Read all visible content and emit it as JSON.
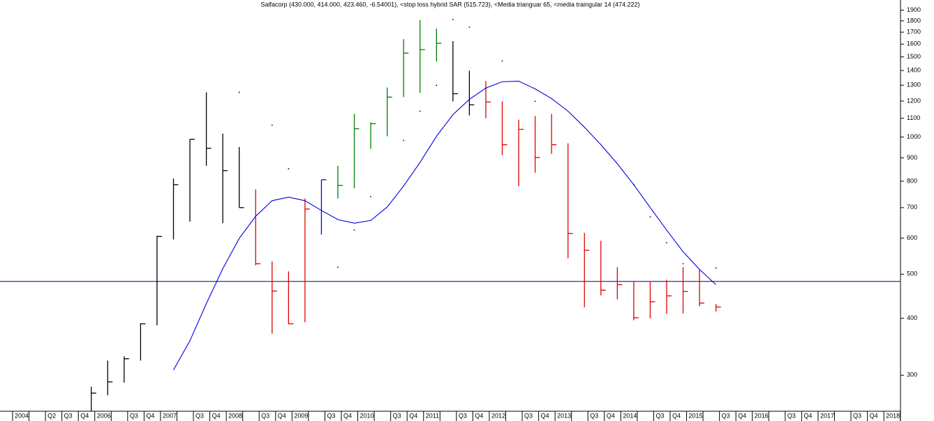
{
  "chart_data": {
    "type": "ohlc",
    "title": "Salfacorp (430.000, 414.000, 423.460, -6.54001), <stop loss hybrid SAR (515.723), <Media trianguar 65, <media traingular 14 (474.222)",
    "categories": [
      "2004",
      null,
      "Q2",
      "Q3",
      "Q4",
      "2006",
      null,
      "Q3",
      "Q4",
      "2007",
      null,
      "Q3",
      "Q4",
      "2008",
      null,
      "Q3",
      "Q4",
      "2009",
      null,
      "Q3",
      "Q4",
      "2010",
      null,
      "Q3",
      "Q4",
      "2011",
      null,
      "Q3",
      "Q4",
      "2012",
      null,
      "Q3",
      "Q4",
      "2013",
      null,
      "Q3",
      "Q4",
      "2014",
      null,
      "Q3",
      "Q4",
      "2015",
      null,
      "Q3",
      "Q4",
      "2016",
      null,
      "Q3",
      "Q4",
      "2017",
      null,
      "Q3",
      "Q4",
      "2018",
      null
    ],
    "high": [
      null,
      null,
      null,
      null,
      null,
      283,
      323,
      330,
      390,
      607,
      811,
      989,
      1254,
      1018,
      951,
      767,
      533,
      507,
      733,
      806,
      865,
      1124,
      1077,
      1285,
      1641,
      1806,
      1730,
      1624,
      1399,
      1327,
      1198,
      1092,
      1112,
      1124,
      969,
      616,
      592,
      518,
      482,
      482,
      486,
      518,
      511,
      430,
      null,
      null,
      null,
      null,
      null,
      null,
      null,
      null,
      null,
      null,
      null
    ],
    "low": [
      null,
      null,
      null,
      null,
      null,
      250,
      271,
      289,
      323,
      386,
      596,
      652,
      865,
      647,
      700,
      523,
      370,
      388,
      392,
      611,
      733,
      772,
      942,
      1004,
      1224,
      1250,
      1465,
      1198,
      1116,
      1100,
      912,
      780,
      835,
      919,
      542,
      423,
      449,
      440,
      396,
      400,
      409,
      410,
      425,
      414,
      null,
      null,
      null,
      null,
      null,
      null,
      null,
      null,
      null,
      null,
      null
    ],
    "close": [
      null,
      null,
      null,
      null,
      null,
      274,
      290,
      326,
      389,
      605,
      786,
      989,
      945,
      844,
      700,
      527,
      459,
      389,
      695,
      806,
      783,
      1043,
      1070,
      1224,
      1529,
      1556,
      1607,
      1245,
      1177,
      1194,
      962,
      1040,
      902,
      962,
      614,
      564,
      461,
      474,
      401,
      435,
      448,
      458,
      432,
      423.46,
      null,
      null,
      null,
      null,
      null,
      null,
      null,
      null,
      null,
      null,
      null
    ],
    "bar_colors": [
      null,
      null,
      null,
      null,
      null,
      "#000000",
      "#000000",
      "#000000",
      "#000000",
      "#000000",
      "#000000",
      "#000000",
      "#000000",
      "#000000",
      "#000000",
      "#e00000",
      "#e00000",
      "#e00000",
      "#e00000",
      "#0000e0",
      "#008000",
      "#008000",
      "#008000",
      "#008000",
      "#008000",
      "#008000",
      "#008000",
      "#000000",
      "#000000",
      "#e00000",
      "#e00000",
      "#e00000",
      "#e00000",
      "#e00000",
      "#e00000",
      "#e00000",
      "#e00000",
      "#e00000",
      "#e00000",
      "#e00000",
      "#e00000",
      "#e00000",
      "#e00000",
      "#e00000",
      null,
      null,
      null,
      null,
      null,
      null,
      null,
      null,
      null,
      null,
      null
    ],
    "overlays": [
      {
        "type": "line",
        "color": "#0000e0",
        "values": [
          null,
          null,
          null,
          null,
          null,
          null,
          null,
          null,
          null,
          null,
          308,
          357,
          431,
          514,
          599,
          670,
          725,
          738,
          725,
          690,
          659,
          647,
          656,
          702,
          781,
          880,
          1004,
          1120,
          1210,
          1281,
          1323,
          1327,
          1276,
          1215,
          1140,
          1051,
          962,
          874,
          786,
          700,
          625,
          560,
          512,
          474.222,
          null,
          null,
          null,
          null,
          null,
          null,
          null,
          null,
          null,
          null,
          null
        ]
      },
      {
        "type": "dots",
        "color": "#000000",
        "values": [
          null,
          null,
          null,
          null,
          null,
          null,
          null,
          null,
          null,
          null,
          null,
          null,
          null,
          null,
          1254,
          null,
          1062,
          852,
          null,
          null,
          518,
          625,
          740,
          null,
          983,
          1140,
          1299,
          1812,
          1743,
          null,
          1470,
          null,
          1198,
          null,
          null,
          null,
          null,
          null,
          786,
          668,
          586,
          527,
          null,
          515.723,
          null,
          null,
          null,
          null,
          null,
          null,
          null,
          null,
          null,
          null,
          null
        ]
      }
    ],
    "hline": {
      "value": 482,
      "color": "#000080"
    },
    "log_scale": true,
    "ylim": [
      250,
      2000
    ],
    "yticks": [
      300,
      400,
      500,
      600,
      700,
      800,
      900,
      1000,
      1100,
      1200,
      1300,
      1400,
      1500,
      1600,
      1700,
      1800,
      1900
    ]
  }
}
